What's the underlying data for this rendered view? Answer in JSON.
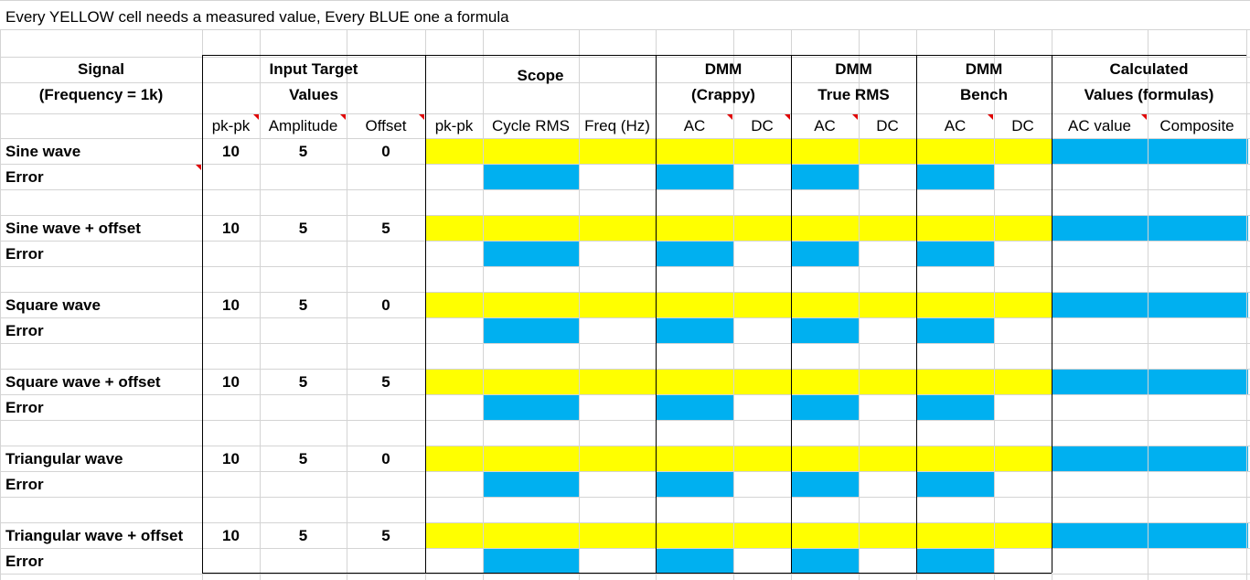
{
  "note": "Every YELLOW cell needs a measured value, Every BLUE one a formula",
  "colors": {
    "yellow": "#ffff00",
    "blue": "#00b0f0",
    "grid": "#d4d4d4"
  },
  "headers": {
    "signal": [
      "Signal",
      "(Frequency = 1k)"
    ],
    "input": [
      "Input Target",
      "Values"
    ],
    "scope": "Scope",
    "dmm_crappy": [
      "DMM",
      "(Crappy)"
    ],
    "dmm_truerms": [
      "DMM",
      "True RMS"
    ],
    "dmm_bench": [
      "DMM",
      "Bench"
    ],
    "calc": [
      "Calculated",
      "Values (formulas)"
    ]
  },
  "subheaders": [
    "pk-pk",
    "Amplitude",
    "Offset",
    "pk-pk",
    "Cycle RMS",
    "Freq (Hz)",
    "AC",
    "DC",
    "AC",
    "DC",
    "AC",
    "DC",
    "AC value",
    "Composite"
  ],
  "error_label": "Error",
  "signals": [
    {
      "name": "Sine wave",
      "pkpk": "10",
      "amplitude": "5",
      "offset": "0"
    },
    {
      "name": "Sine wave + offset",
      "pkpk": "10",
      "amplitude": "5",
      "offset": "5"
    },
    {
      "name": "Square wave",
      "pkpk": "10",
      "amplitude": "5",
      "offset": "0"
    },
    {
      "name": "Square wave + offset",
      "pkpk": "10",
      "amplitude": "5",
      "offset": "5"
    },
    {
      "name": "Triangular wave",
      "pkpk": "10",
      "amplitude": "5",
      "offset": "0"
    },
    {
      "name": "Triangular wave + offset",
      "pkpk": "10",
      "amplitude": "5",
      "offset": "5"
    }
  ]
}
